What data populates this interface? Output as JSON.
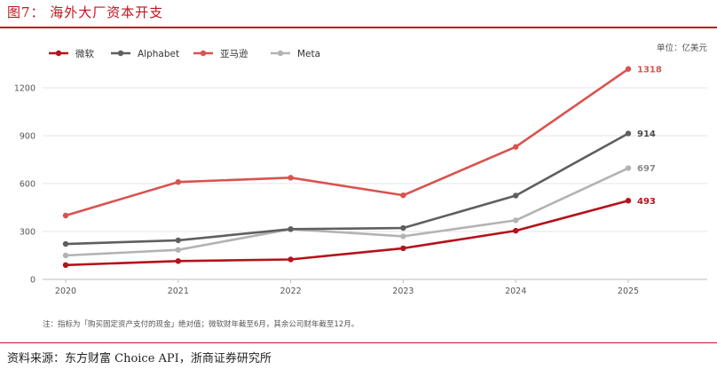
{
  "figure_title": "图7：  海外大厂资本开支",
  "source": "资料来源：东方财富 Choice API，浙商证券研究所",
  "chart_data": {
    "type": "line",
    "unit_label": "单位：亿美元",
    "note": "注：指标为「购买固定资产支付的现金」绝对值；微软财年截至6月，其余公司财年截至12月。",
    "x": [
      "2020",
      "2021",
      "2022",
      "2023",
      "2024",
      "2025"
    ],
    "ylim": [
      0,
      1350
    ],
    "yticks": [
      0,
      300,
      600,
      900,
      1200
    ],
    "grid": true,
    "legend_position": "top-left",
    "series": [
      {
        "name": "微软",
        "color": "#b5121b",
        "values": [
          90,
          115,
          125,
          195,
          305,
          493
        ],
        "end_label": "493",
        "end_label_color": "#b5121b"
      },
      {
        "name": "Alphabet",
        "color": "#5f5f5f",
        "values": [
          222,
          245,
          315,
          322,
          525,
          914
        ],
        "end_label": "914",
        "end_label_color": "#4a4a4a"
      },
      {
        "name": "亚马逊",
        "color": "#d9534f",
        "values": [
          400,
          610,
          637,
          527,
          830,
          1318
        ],
        "end_label": "1318",
        "end_label_color": "#d9534f"
      },
      {
        "name": "Meta",
        "color": "#b3b3b3",
        "values": [
          150,
          185,
          315,
          270,
          370,
          697
        ],
        "end_label": "697",
        "end_label_color": "#8a8a8a"
      }
    ]
  }
}
